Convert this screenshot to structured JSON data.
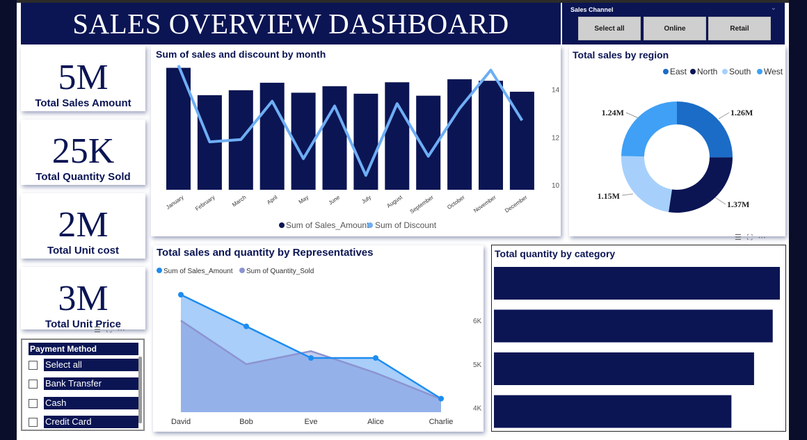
{
  "header": {
    "title": "SALES OVERVIEW DASHBOARD"
  },
  "sales_channel": {
    "label": "Sales Channel",
    "buttons": [
      "Select all",
      "Online",
      "Retail"
    ]
  },
  "kpis": [
    {
      "value": "5M",
      "caption": "Total Sales Amount"
    },
    {
      "value": "25K",
      "caption": "Total Quantity Sold"
    },
    {
      "value": "2M",
      "caption": "Total Unit cost"
    },
    {
      "value": "3M",
      "caption": "Total Unit Price"
    }
  ],
  "payment_method": {
    "title": "Payment Method",
    "options": [
      "Select all",
      "Bank Transfer",
      "Cash",
      "Credit Card"
    ]
  },
  "colors": {
    "navy": "#0b1554",
    "light_blue": "#6eaef5",
    "east": "#1b6cc7",
    "north": "#0b1554",
    "south": "#a6d0fb",
    "west": "#3fa0f5"
  },
  "chart_data": [
    {
      "type": "bar",
      "title": "Sum of sales and discount by month",
      "categories": [
        "January",
        "February",
        "March",
        "April",
        "May",
        "June",
        "July",
        "August",
        "September",
        "October",
        "November",
        "December"
      ],
      "series": [
        {
          "name": "Sum of Sales_Amount",
          "values": [
            495000,
            440000,
            450000,
            465000,
            445000,
            458000,
            443000,
            466000,
            439000,
            472000,
            469000,
            447000
          ]
        },
        {
          "name": "Sum of Discount",
          "values": [
            15,
            11.8,
            11.9,
            13.5,
            11.1,
            13.3,
            10.4,
            13.4,
            11.2,
            13.2,
            14.8,
            12.7
          ],
          "axis": "secondary"
        }
      ],
      "secondary_ylim": [
        9.8,
        15
      ],
      "secondary_ticks": [
        "14",
        "12",
        "10"
      ],
      "legend": [
        "Sum of Sales_Amount",
        "Sum of Discount"
      ]
    },
    {
      "type": "pie",
      "title": "Total sales by region",
      "categories": [
        "East",
        "North",
        "South",
        "West"
      ],
      "values": [
        1.26,
        1.37,
        1.15,
        1.24
      ],
      "labels": [
        "1.26M",
        "1.37M",
        "1.15M",
        "1.24M"
      ]
    },
    {
      "type": "area",
      "title": "Total sales and quantity by Representatives",
      "categories": [
        "David",
        "Bob",
        "Eve",
        "Alice",
        "Charlie"
      ],
      "series": [
        {
          "name": "Sum of Sales_Amount",
          "values": [
            1.12,
            1.05,
            0.98,
            0.98,
            0.89
          ]
        },
        {
          "name": "Sum of Quantity_Sold",
          "values": [
            6000,
            5000,
            5300,
            4800,
            4200
          ]
        }
      ],
      "right_ticks": [
        "6K",
        "5K",
        "4K"
      ],
      "right_ylim": [
        3900,
        6800
      ]
    },
    {
      "type": "bar",
      "orientation": "horizontal",
      "title": "Total quantity by category",
      "categories": [
        "",
        "",
        "",
        ""
      ],
      "values": [
        7200,
        7020,
        6550,
        5980
      ]
    }
  ]
}
